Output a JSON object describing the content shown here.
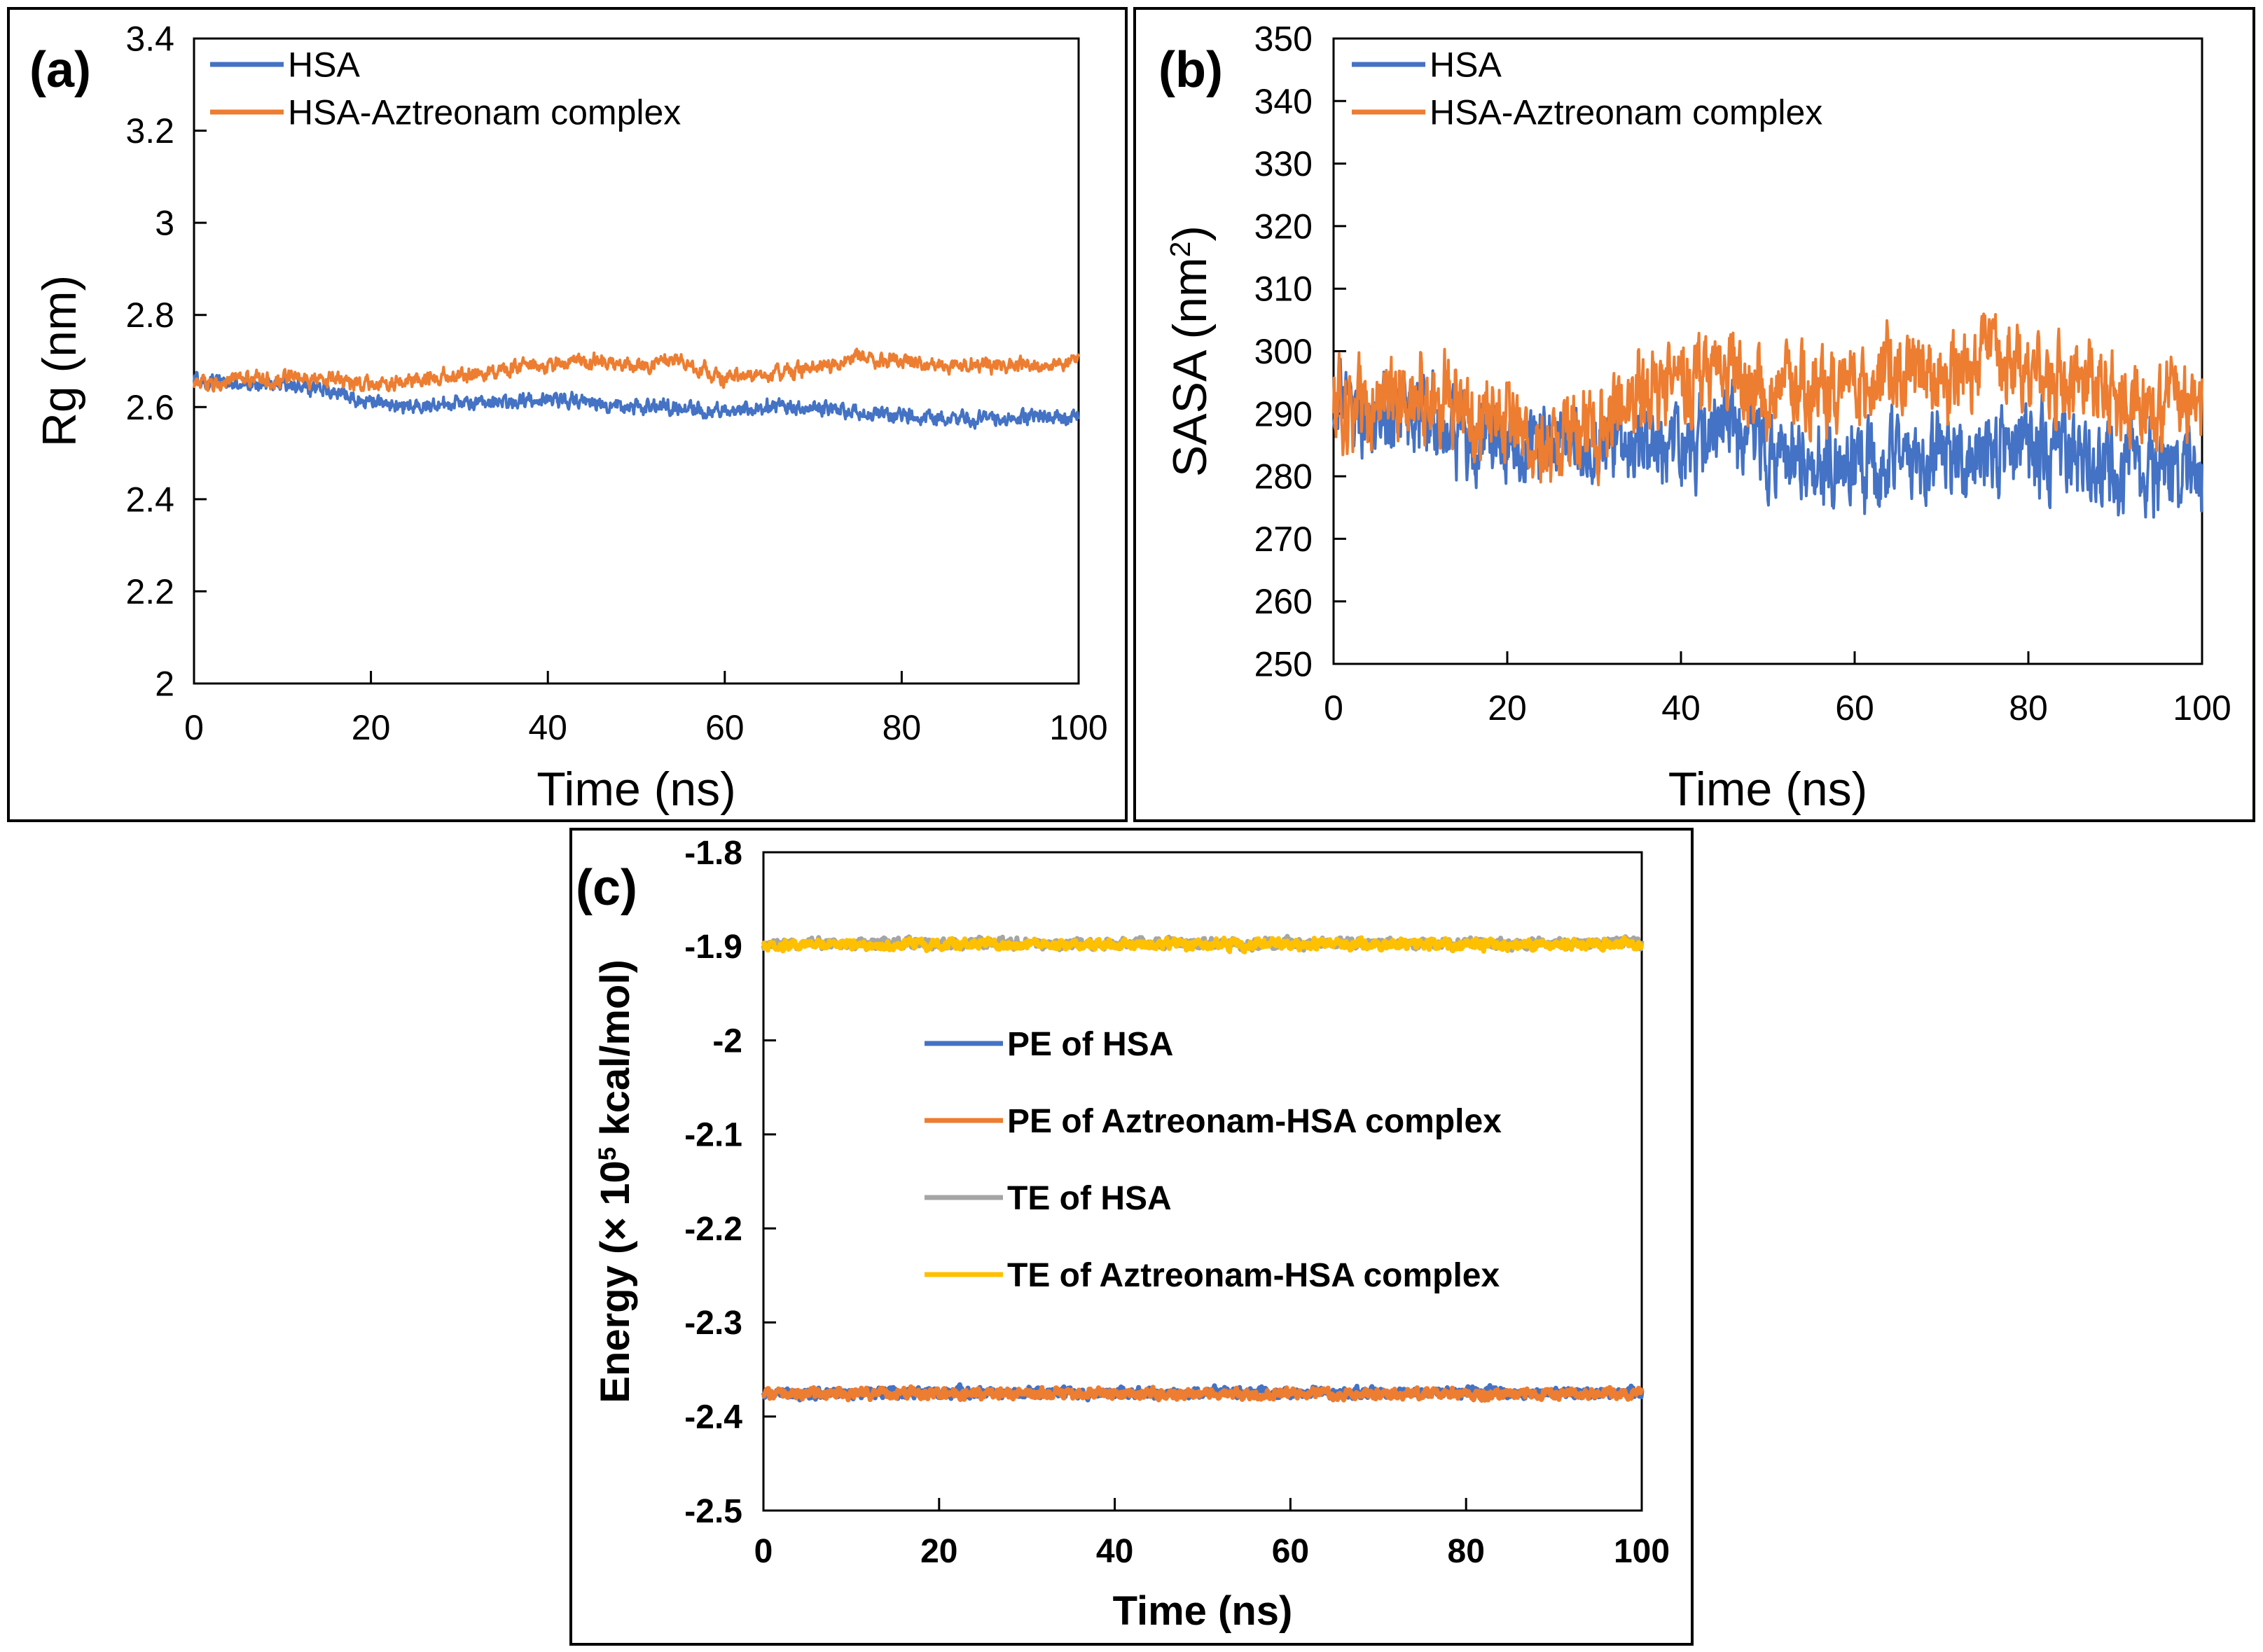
{
  "colors": {
    "hsa": "#4472C4",
    "complex": "#ED7D31",
    "te_hsa": "#A5A5A5",
    "te_complex": "#FFC000",
    "frame": "#000000",
    "background": "#ffffff"
  },
  "chart_data": [
    {
      "id": "a",
      "panel_label": "(a)",
      "type": "line",
      "title": "",
      "xlabel": "Time (ns)",
      "ylabel": "Rg (nm)",
      "xlim": [
        0,
        100
      ],
      "ylim": [
        2,
        3.4
      ],
      "xticks": [
        "0",
        "20",
        "40",
        "60",
        "80",
        "100"
      ],
      "yticks": [
        "2",
        "2.2",
        "2.4",
        "2.6",
        "2.8",
        "3",
        "3.2",
        "3.4"
      ],
      "grid": false,
      "legend_position": "top-left",
      "series": [
        {
          "name": "HSA",
          "color": "#4472C4",
          "noise": 0.012,
          "x": [
            0,
            5,
            10,
            15,
            20,
            25,
            30,
            35,
            40,
            45,
            50,
            55,
            60,
            65,
            70,
            75,
            80,
            85,
            90,
            95,
            100
          ],
          "values": [
            2.66,
            2.65,
            2.65,
            2.64,
            2.61,
            2.6,
            2.61,
            2.61,
            2.62,
            2.61,
            2.6,
            2.6,
            2.59,
            2.6,
            2.6,
            2.59,
            2.58,
            2.58,
            2.57,
            2.58,
            2.58
          ]
        },
        {
          "name": "HSA-Aztreonam complex",
          "color": "#ED7D31",
          "noise": 0.012,
          "x": [
            0,
            5,
            10,
            15,
            20,
            25,
            30,
            35,
            40,
            45,
            50,
            55,
            60,
            65,
            70,
            75,
            80,
            85,
            90,
            95,
            100
          ],
          "values": [
            2.65,
            2.66,
            2.66,
            2.66,
            2.65,
            2.66,
            2.67,
            2.68,
            2.69,
            2.7,
            2.69,
            2.7,
            2.66,
            2.67,
            2.68,
            2.71,
            2.7,
            2.69,
            2.69,
            2.69,
            2.7
          ]
        }
      ]
    },
    {
      "id": "b",
      "panel_label": "(b)",
      "type": "line",
      "title": "",
      "xlabel": "Time (ns)",
      "ylabel": "SASA (nm",
      "ylabel_sup": "2",
      "ylabel_end": ")",
      "xlim": [
        0,
        100
      ],
      "ylim": [
        250,
        350
      ],
      "xticks": [
        "0",
        "20",
        "40",
        "60",
        "80",
        "100"
      ],
      "yticks": [
        "250",
        "260",
        "270",
        "280",
        "290",
        "300",
        "310",
        "320",
        "330",
        "340",
        "350"
      ],
      "grid": false,
      "legend_position": "top-left",
      "series": [
        {
          "name": "HSA",
          "color": "#4472C4",
          "noise": 5,
          "x": [
            0,
            5,
            10,
            15,
            20,
            25,
            30,
            35,
            40,
            45,
            50,
            55,
            60,
            65,
            70,
            75,
            80,
            85,
            90,
            95,
            100
          ],
          "values": [
            292,
            290,
            289,
            287,
            285,
            284,
            285,
            285,
            284,
            287,
            285,
            283,
            282,
            282,
            283,
            283,
            284,
            283,
            281,
            280,
            281
          ]
        },
        {
          "name": "HSA-Aztreonam complex",
          "color": "#ED7D31",
          "noise": 5,
          "x": [
            0,
            5,
            10,
            15,
            20,
            25,
            30,
            35,
            40,
            45,
            50,
            55,
            60,
            65,
            70,
            75,
            80,
            85,
            90,
            95,
            100
          ],
          "values": [
            291,
            292,
            293,
            291,
            288,
            286,
            288,
            293,
            294,
            296,
            294,
            293,
            293,
            297,
            295,
            299,
            296,
            295,
            292,
            291,
            292
          ]
        }
      ]
    },
    {
      "id": "c",
      "panel_label": "(c)",
      "type": "line",
      "title": "",
      "xlabel": "Time (ns)",
      "ylabel": "Energy (× 10",
      "ylabel_sup": "5",
      "ylabel_end": " kcal/mol)",
      "xlim": [
        0,
        100
      ],
      "ylim": [
        -2.5,
        -1.8
      ],
      "xticks": [
        "0",
        "20",
        "40",
        "60",
        "80",
        "100"
      ],
      "yticks": [
        "-2.5",
        "-2.4",
        "-2.3",
        "-2.2",
        "-2.1",
        "-2",
        "-1.9",
        "-1.8"
      ],
      "grid": false,
      "legend_position": "center-left",
      "series": [
        {
          "name": "PE of HSA",
          "color": "#4472C4",
          "noise": 0.004,
          "x": [
            0,
            100
          ],
          "values": [
            -2.375,
            -2.375
          ]
        },
        {
          "name": "PE of Aztreonam-HSA complex",
          "color": "#ED7D31",
          "noise": 0.004,
          "x": [
            0,
            100
          ],
          "values": [
            -2.376,
            -2.376
          ]
        },
        {
          "name": "TE of HSA",
          "color": "#A5A5A5",
          "noise": 0.004,
          "x": [
            0,
            100
          ],
          "values": [
            -1.897,
            -1.897
          ]
        },
        {
          "name": "TE of Aztreonam-HSA complex",
          "color": "#FFC000",
          "noise": 0.004,
          "x": [
            0,
            100
          ],
          "values": [
            -1.898,
            -1.898
          ]
        }
      ]
    }
  ]
}
